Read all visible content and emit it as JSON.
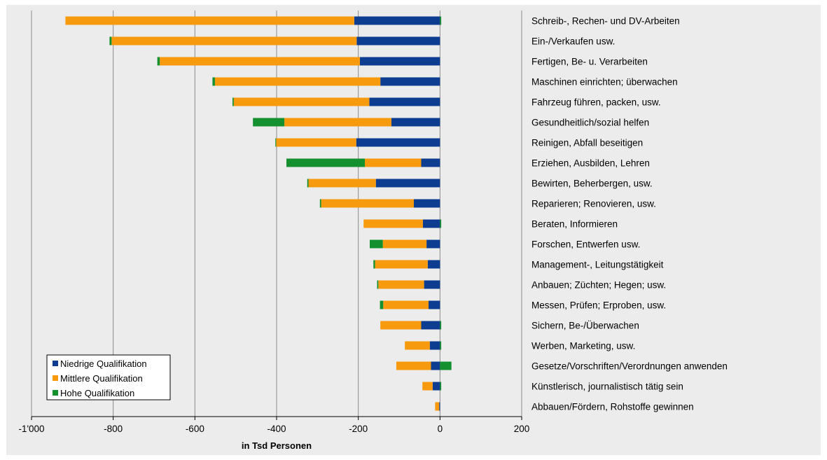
{
  "chart_data": {
    "type": "bar",
    "orientation": "horizontal",
    "stacked": true,
    "xlabel": "in Tsd Personen",
    "ylabel": "",
    "xlim": [
      -1000,
      200
    ],
    "xticks": [
      -1000,
      -800,
      -600,
      -400,
      -200,
      0,
      200
    ],
    "xtick_labels": [
      "-1'000",
      "-800",
      "-600",
      "-400",
      "-200",
      "0",
      "200"
    ],
    "grid": "vertical gridlines",
    "legend_position": "bottom-left",
    "categories": [
      "Schreib-, Rechen- und DV-Arbeiten",
      "Ein-/Verkaufen usw.",
      "Fertigen, Be- u. Verarbeiten",
      "Maschinen einrichten; überwachen",
      "Fahrzeug führen, packen, usw.",
      "Gesundheitlich/sozial helfen",
      "Reinigen, Abfall beseitigen",
      "Erziehen, Ausbilden, Lehren",
      "Bewirten, Beherbergen, usw.",
      "Reparieren; Renovieren, usw.",
      "Beraten, Informieren",
      "Forschen, Entwerfen usw.",
      "Management-, Leitungstätigkeit",
      "Anbauen; Züchten; Hegen; usw.",
      "Messen, Prüfen; Erproben, usw.",
      "Sichern, Be-/Überwachen",
      "Werben, Marketing, usw.",
      "Gesetze/Vorschriften/Verordnungen anwenden",
      "Künstlerisch, journalistisch tätig sein",
      "Abbauen/Fördern, Rohstoffe gewinnen"
    ],
    "series": [
      {
        "name": "Niedrige Qualifikation",
        "color": "#0d3d91",
        "values": [
          -210,
          -204,
          -196,
          -146,
          -173,
          -119,
          -205,
          -46,
          -157,
          -64,
          -42,
          -33,
          -30,
          -39,
          -28,
          -46,
          -25,
          -22,
          -18,
          -2
        ]
      },
      {
        "name": "Mittlere Qualifikation",
        "color": "#f79a0e",
        "values": [
          -707,
          -600,
          -490,
          -405,
          -332,
          -262,
          -196,
          -138,
          -165,
          -227,
          -145,
          -107,
          -129,
          -112,
          -111,
          -100,
          -61,
          -85,
          -25,
          -10
        ]
      },
      {
        "name": "Hohe Qualifikation",
        "color": "#14902f",
        "values": [
          3,
          -5,
          -6,
          -6,
          -3,
          -77,
          -2,
          -192,
          -3,
          -3,
          3,
          -32,
          -4,
          -3,
          -8,
          3,
          3,
          28,
          3,
          0
        ]
      }
    ]
  }
}
